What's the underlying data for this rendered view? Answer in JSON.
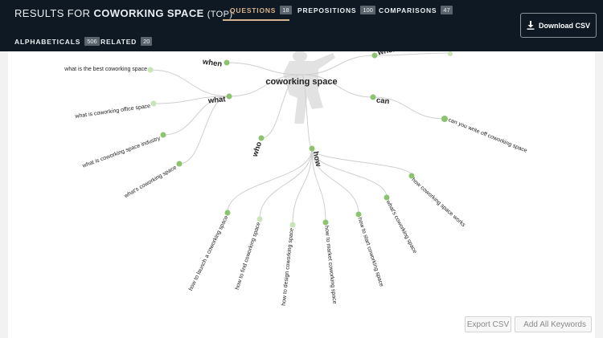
{
  "header": {
    "results_prefix": "RESULTS FOR",
    "keyword": "COWORKING SPACE",
    "suffix": "(TOP)"
  },
  "tabs": [
    {
      "label": "QUESTIONS",
      "count": "18",
      "active": true
    },
    {
      "label": "PREPOSITIONS",
      "count": "100"
    },
    {
      "label": "COMPARISONS",
      "count": "47"
    },
    {
      "label": "ALPHABETICALS",
      "count": "506"
    },
    {
      "label": "RELATED",
      "count": "20"
    }
  ],
  "download_label": "Download CSV",
  "export_label": "Export CSV",
  "add_all_label": "Add All Keywords",
  "wheel": {
    "center": "coworking space",
    "branches": {
      "when": "when",
      "where": "where",
      "what": "what",
      "can": "can",
      "who": "who",
      "how": "how"
    },
    "what_items": [
      "what is the best coworking space",
      "what is coworking office space",
      "what is coworking space industry",
      "what's coworking space"
    ],
    "can_items": [
      "can you write off coworking space"
    ],
    "how_items": [
      "how to launch a coworking space",
      "how to find coworking space",
      "how to design coworking space",
      "how to market coworking space",
      "how to start coworking space",
      "what's coworking space",
      "how coworking space works"
    ]
  },
  "colors": {
    "topbar": "#0f1923",
    "accent": "#d8b48c",
    "node": "#8cc36e",
    "node_light": "#c9e4b8",
    "line": "#cfcfcf"
  }
}
